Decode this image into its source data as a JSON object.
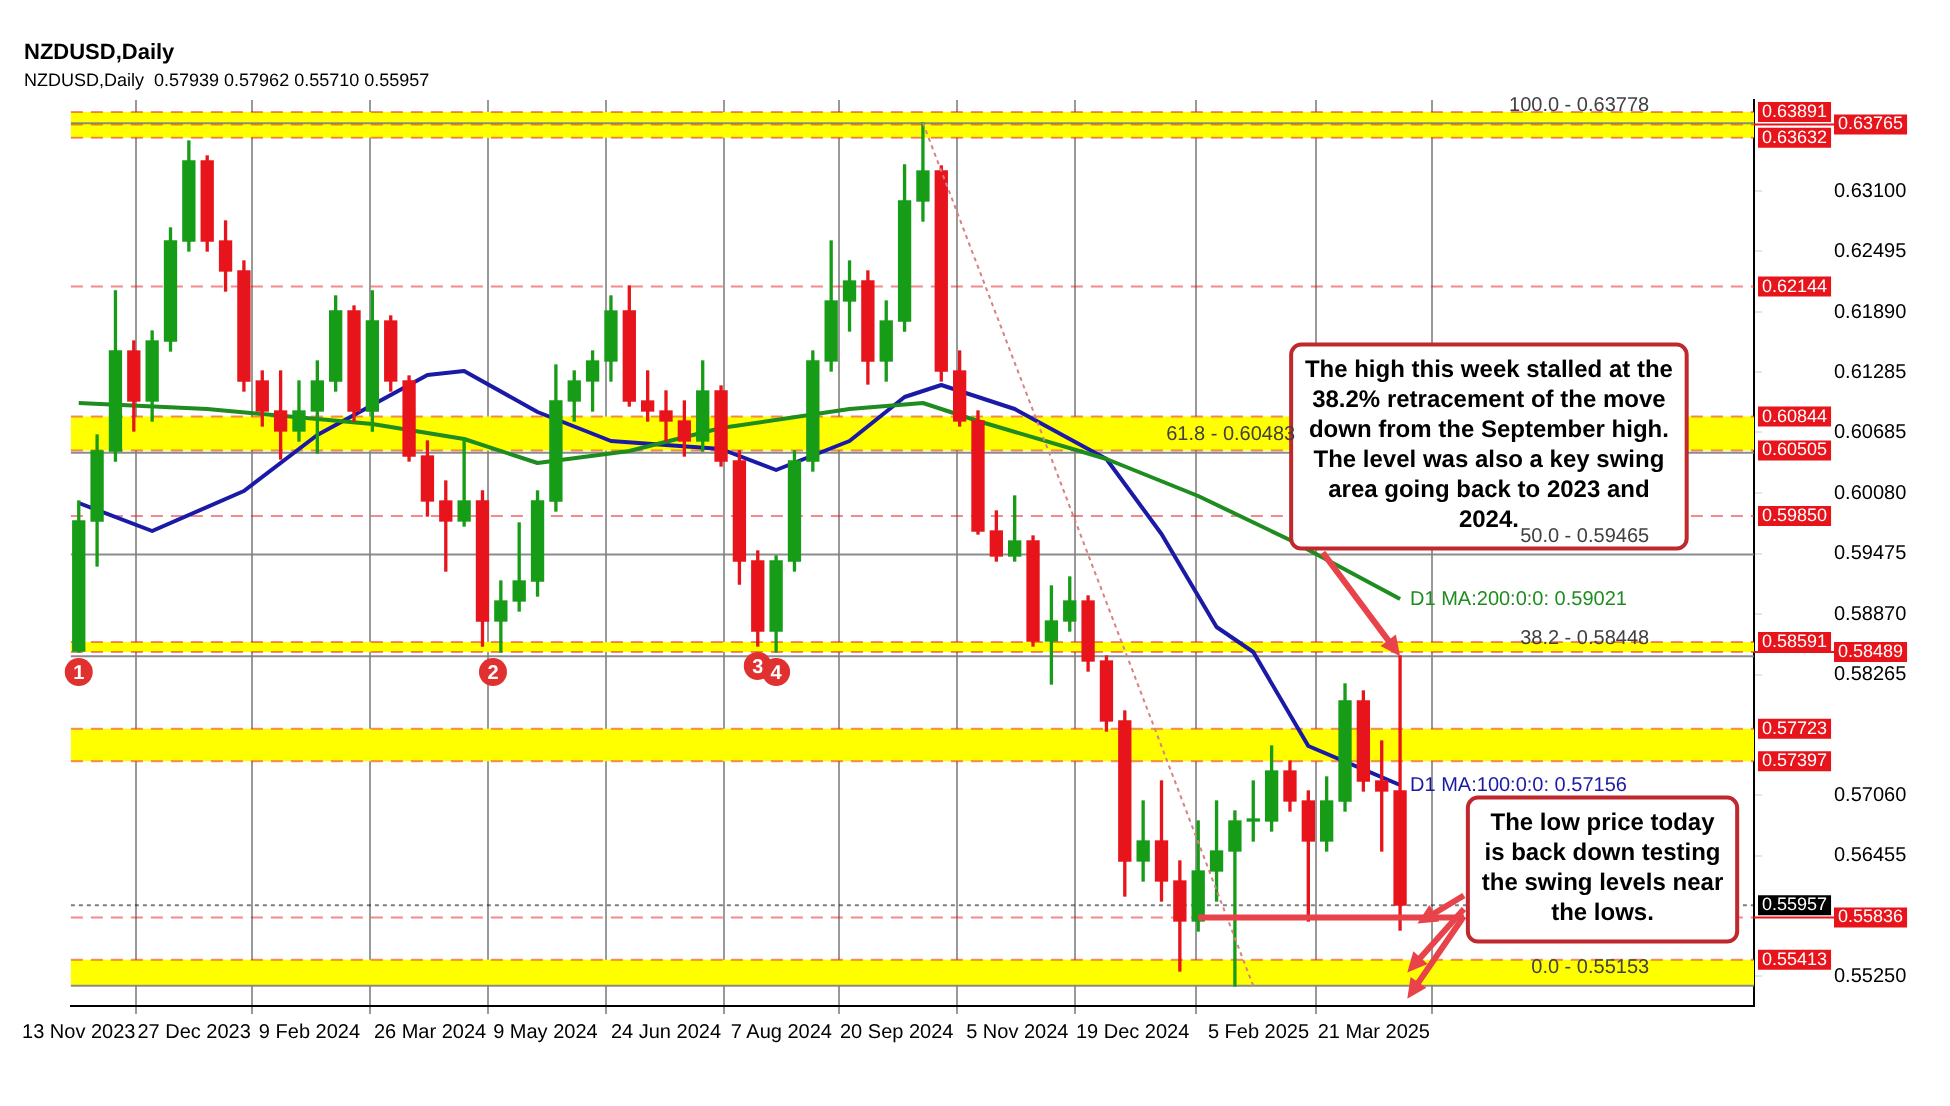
{
  "chart_data": {
    "type": "candlestick",
    "title": "NZDUSD,Daily",
    "subtitle": "NZDUSD,Daily  0.57939 0.57962 0.55710 0.55957",
    "x": [
      "2023-11-13",
      "2023-11-20",
      "2023-11-27",
      "2023-12-04",
      "2023-12-11",
      "2023-12-18",
      "2023-12-25",
      "2024-01-01",
      "2024-01-08",
      "2024-01-15",
      "2024-01-22",
      "2024-01-29",
      "2024-02-05",
      "2024-02-12",
      "2024-02-19",
      "2024-02-26",
      "2024-03-04",
      "2024-03-11",
      "2024-03-18",
      "2024-03-25",
      "2024-04-01",
      "2024-04-08",
      "2024-04-15",
      "2024-04-22",
      "2024-04-29",
      "2024-05-06",
      "2024-05-13",
      "2024-05-20",
      "2024-05-27",
      "2024-06-03",
      "2024-06-10",
      "2024-06-17",
      "2024-06-24",
      "2024-07-01",
      "2024-07-08",
      "2024-07-15",
      "2024-07-22",
      "2024-07-29",
      "2024-08-05",
      "2024-08-12",
      "2024-08-19",
      "2024-08-26",
      "2024-09-02",
      "2024-09-09",
      "2024-09-16",
      "2024-09-23",
      "2024-09-30",
      "2024-10-07",
      "2024-10-14",
      "2024-10-21",
      "2024-10-28",
      "2024-11-04",
      "2024-11-11",
      "2024-11-18",
      "2024-11-25",
      "2024-12-02",
      "2024-12-09",
      "2024-12-16",
      "2024-12-23",
      "2024-12-30",
      "2025-01-06",
      "2025-01-13",
      "2025-01-20",
      "2025-01-27",
      "2025-02-03",
      "2025-02-10",
      "2025-02-17",
      "2025-02-24",
      "2025-03-03",
      "2025-03-10",
      "2025-03-17",
      "2025-03-24",
      "2025-03-31"
    ],
    "ohlc": [
      [
        0.585,
        0.6,
        0.5849,
        0.598
      ],
      [
        0.598,
        0.6066,
        0.5935,
        0.605
      ],
      [
        0.605,
        0.621,
        0.604,
        0.615
      ],
      [
        0.615,
        0.616,
        0.607,
        0.61
      ],
      [
        0.61,
        0.617,
        0.608,
        0.616
      ],
      [
        0.616,
        0.6273,
        0.615,
        0.626
      ],
      [
        0.626,
        0.636,
        0.625,
        0.634
      ],
      [
        0.634,
        0.6345,
        0.625,
        0.626
      ],
      [
        0.626,
        0.628,
        0.621,
        0.623
      ],
      [
        0.623,
        0.624,
        0.611,
        0.612
      ],
      [
        0.612,
        0.613,
        0.6075,
        0.609
      ],
      [
        0.609,
        0.613,
        0.6042,
        0.607
      ],
      [
        0.607,
        0.612,
        0.606,
        0.609
      ],
      [
        0.609,
        0.614,
        0.6048,
        0.612
      ],
      [
        0.612,
        0.6205,
        0.611,
        0.619
      ],
      [
        0.619,
        0.6195,
        0.608,
        0.609
      ],
      [
        0.609,
        0.621,
        0.607,
        0.618
      ],
      [
        0.618,
        0.6185,
        0.611,
        0.612
      ],
      [
        0.612,
        0.6125,
        0.604,
        0.6045
      ],
      [
        0.6045,
        0.606,
        0.5985,
        0.6
      ],
      [
        0.6,
        0.602,
        0.593,
        0.598
      ],
      [
        0.598,
        0.6062,
        0.5975,
        0.6
      ],
      [
        0.6,
        0.601,
        0.5855,
        0.588
      ],
      [
        0.588,
        0.592,
        0.5849,
        0.59
      ],
      [
        0.59,
        0.5978,
        0.589,
        0.592
      ],
      [
        0.592,
        0.601,
        0.5905,
        0.6
      ],
      [
        0.6,
        0.6136,
        0.599,
        0.61
      ],
      [
        0.61,
        0.613,
        0.608,
        0.612
      ],
      [
        0.612,
        0.615,
        0.609,
        0.614
      ],
      [
        0.614,
        0.6205,
        0.612,
        0.619
      ],
      [
        0.619,
        0.6215,
        0.6095,
        0.61
      ],
      [
        0.61,
        0.613,
        0.608,
        0.609
      ],
      [
        0.609,
        0.611,
        0.606,
        0.608
      ],
      [
        0.608,
        0.61,
        0.6045,
        0.606
      ],
      [
        0.606,
        0.614,
        0.605,
        0.611
      ],
      [
        0.611,
        0.6115,
        0.6035,
        0.604
      ],
      [
        0.604,
        0.605,
        0.5917,
        0.594
      ],
      [
        0.594,
        0.595,
        0.5855,
        0.587
      ],
      [
        0.587,
        0.5945,
        0.5849,
        0.594
      ],
      [
        0.594,
        0.605,
        0.593,
        0.604
      ],
      [
        0.604,
        0.615,
        0.603,
        0.614
      ],
      [
        0.614,
        0.626,
        0.613,
        0.62
      ],
      [
        0.62,
        0.624,
        0.617,
        0.622
      ],
      [
        0.622,
        0.623,
        0.6117,
        0.614
      ],
      [
        0.614,
        0.62,
        0.612,
        0.618
      ],
      [
        0.618,
        0.6336,
        0.617,
        0.63
      ],
      [
        0.63,
        0.6378,
        0.628,
        0.633
      ],
      [
        0.633,
        0.6335,
        0.612,
        0.613
      ],
      [
        0.613,
        0.615,
        0.6075,
        0.608
      ],
      [
        0.608,
        0.609,
        0.5967,
        0.597
      ],
      [
        0.597,
        0.599,
        0.594,
        0.5945
      ],
      [
        0.5945,
        0.6005,
        0.594,
        0.596
      ],
      [
        0.596,
        0.5965,
        0.5855,
        0.586
      ],
      [
        0.586,
        0.5915,
        0.5817,
        0.588
      ],
      [
        0.588,
        0.5924,
        0.587,
        0.59
      ],
      [
        0.59,
        0.5905,
        0.583,
        0.584
      ],
      [
        0.584,
        0.5845,
        0.577,
        0.578
      ],
      [
        0.578,
        0.579,
        0.5605,
        0.564
      ],
      [
        0.564,
        0.57,
        0.562,
        0.566
      ],
      [
        0.566,
        0.572,
        0.56,
        0.562
      ],
      [
        0.562,
        0.564,
        0.553,
        0.558
      ],
      [
        0.558,
        0.568,
        0.557,
        0.563
      ],
      [
        0.563,
        0.57,
        0.56,
        0.565
      ],
      [
        0.565,
        0.569,
        0.5515,
        0.568
      ],
      [
        0.568,
        0.572,
        0.566,
        0.568
      ],
      [
        0.568,
        0.5755,
        0.567,
        0.573
      ],
      [
        0.573,
        0.574,
        0.569,
        0.57
      ],
      [
        0.57,
        0.571,
        0.558,
        0.566
      ],
      [
        0.566,
        0.5724,
        0.565,
        0.57
      ],
      [
        0.57,
        0.5817,
        0.569,
        0.58
      ],
      [
        0.58,
        0.581,
        0.571,
        0.572
      ],
      [
        0.572,
        0.576,
        0.565,
        0.571
      ],
      [
        0.571,
        0.5845,
        0.5571,
        0.5596
      ]
    ],
    "series": [
      {
        "type": "line",
        "name": "D1 MA:200:0:0: 0.59021",
        "color": "#1e8c1e",
        "x": [
          "2023-11-13",
          "2024-01-01",
          "2024-03-04",
          "2024-04-08",
          "2024-05-06",
          "2024-06-10",
          "2024-07-15",
          "2024-09-02",
          "2024-09-30",
          "2024-10-21",
          "2024-12-09",
          "2025-01-13",
          "2025-02-17",
          "2025-03-31"
        ],
        "values": [
          0.6098,
          0.6092,
          0.6077,
          0.6062,
          0.6038,
          0.605,
          0.6073,
          0.6092,
          0.6098,
          0.608,
          0.6042,
          0.6005,
          0.5961,
          0.5902
        ]
      },
      {
        "type": "line",
        "name": "D1 MA:100:0:0: 0.57156",
        "color": "#1a1aa6",
        "x": [
          "2023-11-13",
          "2023-12-11",
          "2024-01-15",
          "2024-02-12",
          "2024-03-25",
          "2024-04-08",
          "2024-05-06",
          "2024-06-03",
          "2024-07-15",
          "2024-08-05",
          "2024-09-02",
          "2024-09-23",
          "2024-10-07",
          "2024-11-04",
          "2024-12-09",
          "2024-12-30",
          "2025-01-20",
          "2025-02-03",
          "2025-02-24",
          "2025-03-31"
        ],
        "values": [
          0.5998,
          0.597,
          0.601,
          0.6066,
          0.6126,
          0.613,
          0.6089,
          0.606,
          0.6052,
          0.6031,
          0.606,
          0.6104,
          0.6116,
          0.6092,
          0.6042,
          0.5967,
          0.5874,
          0.5849,
          0.5755,
          0.5716
        ]
      },
      {
        "type": "line",
        "color": "#d98080",
        "line_style": "dotted",
        "x": [
          "2024-09-30",
          "2025-02-03"
        ],
        "values": [
          0.6378,
          0.5515
        ]
      }
    ],
    "xlim": [
      "2023-11-10",
      "2025-08-13"
    ],
    "xticks": [
      {
        "value": "2023-11-13",
        "label": "13 Nov 2023"
      },
      {
        "value": "2023-12-27",
        "label": "27 Dec 2023"
      },
      {
        "value": "2024-02-09",
        "label": "9 Feb 2024"
      },
      {
        "value": "2024-03-26",
        "label": "26 Mar 2024"
      },
      {
        "value": "2024-05-09",
        "label": "9 May 2024"
      },
      {
        "value": "2024-06-24",
        "label": "24 Jun 2024"
      },
      {
        "value": "2024-08-07",
        "label": "7 Aug 2024"
      },
      {
        "value": "2024-09-20",
        "label": "20 Sep 2024"
      },
      {
        "value": "2024-11-05",
        "label": "5 Nov 2024"
      },
      {
        "value": "2024-12-19",
        "label": "19 Dec 2024"
      },
      {
        "value": "2025-02-05",
        "label": "5 Feb 2025"
      },
      {
        "value": "2025-03-21",
        "label": "21 Mar 2025"
      }
    ],
    "ylim": [
      0.5495,
      0.6401
    ],
    "yticks": [
      {
        "value": 0.631,
        "label": "0.63100"
      },
      {
        "value": 0.62495,
        "label": "0.62495"
      },
      {
        "value": 0.6189,
        "label": "0.61890"
      },
      {
        "value": 0.61285,
        "label": "0.61285"
      },
      {
        "value": 0.60685,
        "label": "0.60685"
      },
      {
        "value": 0.6008,
        "label": "0.60080"
      },
      {
        "value": 0.59475,
        "label": "0.59475"
      },
      {
        "value": 0.5887,
        "label": "0.58870"
      },
      {
        "value": 0.58265,
        "label": "0.58265"
      },
      {
        "value": 0.5706,
        "label": "0.57060"
      },
      {
        "value": 0.56455,
        "label": "0.56455"
      },
      {
        "value": 0.5525,
        "label": "0.55250"
      }
    ],
    "bands": [
      {
        "axis": "y",
        "from": 0.63632,
        "to": 0.63891,
        "color": "#ffff00"
      },
      {
        "axis": "y",
        "from": 0.60505,
        "to": 0.60844,
        "color": "#ffff00"
      },
      {
        "axis": "y",
        "from": 0.58489,
        "to": 0.58591,
        "color": "#ffff00"
      },
      {
        "axis": "y",
        "from": 0.57397,
        "to": 0.57723,
        "color": "#ffff00"
      },
      {
        "axis": "y",
        "from": 0.55153,
        "to": 0.55413,
        "color": "#ffff00"
      }
    ],
    "ref_lines": [
      {
        "axis": "y",
        "value": 0.63891,
        "label": "0.63891",
        "color": "#e8141b",
        "line_style": "dashed"
      },
      {
        "axis": "y",
        "value": 0.63765,
        "label": "0.63765",
        "color": "#e8141b",
        "line_style": "dashed"
      },
      {
        "axis": "y",
        "value": 0.63632,
        "label": "0.63632",
        "color": "#e8141b",
        "line_style": "dashed"
      },
      {
        "axis": "y",
        "value": 0.62144,
        "label": "0.62144",
        "color": "#e8141b",
        "line_style": "dashed"
      },
      {
        "axis": "y",
        "value": 0.60844,
        "label": "0.60844",
        "color": "#e8141b",
        "line_style": "dashed"
      },
      {
        "axis": "y",
        "value": 0.60505,
        "label": "0.60505",
        "color": "#e8141b",
        "line_style": "dashed"
      },
      {
        "axis": "y",
        "value": 0.5985,
        "label": "0.59850",
        "color": "#e8141b",
        "line_style": "dashed"
      },
      {
        "axis": "y",
        "value": 0.58591,
        "label": "0.58591",
        "color": "#e8141b",
        "line_style": "dashed"
      },
      {
        "axis": "y",
        "value": 0.58489,
        "label": "0.58489",
        "color": "#e8141b",
        "line_style": "dashed"
      },
      {
        "axis": "y",
        "value": 0.57723,
        "label": "0.57723",
        "color": "#e8141b",
        "line_style": "dashed"
      },
      {
        "axis": "y",
        "value": 0.57397,
        "label": "0.57397",
        "color": "#e8141b",
        "line_style": "dashed"
      },
      {
        "axis": "y",
        "value": 0.55957,
        "label": "0.55957",
        "color": "#000000",
        "line_style": "dotted"
      },
      {
        "axis": "y",
        "value": 0.55836,
        "label": "0.55836",
        "color": "#e8141b",
        "line_style": "dashed"
      },
      {
        "axis": "y",
        "value": 0.55413,
        "label": "0.55413",
        "color": "#e8141b",
        "line_style": "dashed"
      },
      {
        "axis": "y",
        "value": 0.63778,
        "color": "#808080",
        "line_style": "solid"
      },
      {
        "axis": "y",
        "value": 0.60483,
        "color": "#808080",
        "line_style": "solid"
      },
      {
        "axis": "y",
        "value": 0.59465,
        "color": "#808080",
        "line_style": "solid"
      },
      {
        "axis": "y",
        "value": 0.58448,
        "color": "#808080",
        "line_style": "solid"
      },
      {
        "axis": "y",
        "value": 0.55153,
        "color": "#808080",
        "line_style": "solid"
      }
    ],
    "annotations": [
      {
        "text": "1",
        "x": "2023-11-13",
        "y": 0.5849
      },
      {
        "text": "2",
        "x": "2024-04-19",
        "y": 0.5849
      },
      {
        "text": "3",
        "x": "2024-07-29",
        "y": 0.5855
      },
      {
        "text": "4",
        "x": "2024-08-05",
        "y": 0.5849
      },
      {
        "text": "The high this week stalled at the 38.2% retracement of the move down from the September high.  The level was also a key swing area going back to 2023 and 2024.",
        "x": "2025-03-31",
        "y": 0.58448
      },
      {
        "text": "The low price today is back down testing the swing levels near the lows.",
        "x": "2025-01-13",
        "y": 0.55836
      },
      {
        "text": "100.0 - 0.63778",
        "x": "2025-07-04",
        "y": 0.63778
      },
      {
        "text": "61.8 - 0.60483",
        "x": "2025-02-19",
        "y": 0.60483
      },
      {
        "text": "50.0 - 0.59465",
        "x": "2025-07-04",
        "y": 0.59465
      },
      {
        "text": "38.2 - 0.58448",
        "x": "2025-07-04",
        "y": 0.58448
      },
      {
        "text": "0.0 - 0.55153",
        "x": "2025-07-04",
        "y": 0.55153
      }
    ],
    "grid": "x"
  }
}
